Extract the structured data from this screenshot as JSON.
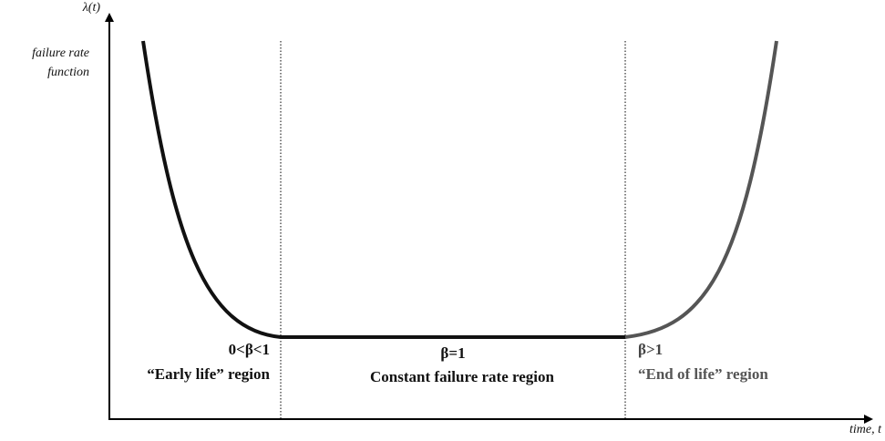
{
  "y_axis": {
    "symbol": "λ(t)",
    "label_lines": [
      "failure rate",
      "function"
    ]
  },
  "x_axis": {
    "label": "time, t"
  },
  "regions": [
    {
      "parameter": "0<β<1",
      "label": "“Early life” region"
    },
    {
      "parameter": "β=1",
      "label": "Constant failure rate region"
    },
    {
      "parameter": "β>1",
      "label": "“End of life” region"
    }
  ]
}
